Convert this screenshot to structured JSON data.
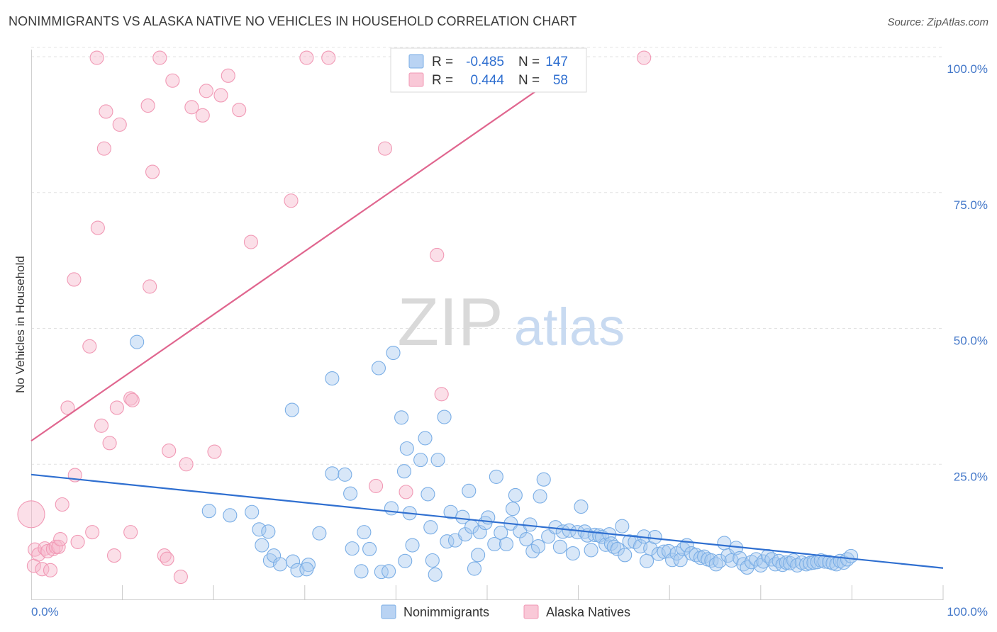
{
  "header": {
    "title": "NONIMMIGRANTS VS ALASKA NATIVE NO VEHICLES IN HOUSEHOLD CORRELATION CHART",
    "source": "Source: ZipAtlas.com"
  },
  "watermark": {
    "zip": "ZIP",
    "atlas": "atlas"
  },
  "legend_box": {
    "rows": [
      {
        "r_label": "R =",
        "r_value": "-0.485",
        "n_label": "N =",
        "n_value": "147",
        "color": "#7aaee6"
      },
      {
        "r_label": "R =",
        "r_value": "0.444",
        "n_label": "N =",
        "n_value": "58",
        "color": "#f199b5"
      }
    ]
  },
  "bottom_legend": [
    {
      "label": "Nonimmigrants",
      "color": "#7aaee6"
    },
    {
      "label": "Alaska Natives",
      "color": "#f199b5"
    }
  ],
  "colors": {
    "blue": "#7aaee6",
    "blue_line": "#2f6fd0",
    "pink": "#f199b5",
    "pink_line": "#e0668f",
    "axis_text": "#4478c9"
  },
  "chart_data": {
    "type": "scatter",
    "title": "NONIMMIGRANTS VS ALASKA NATIVE NO VEHICLES IN HOUSEHOLD CORRELATION CHART",
    "xlabel": "",
    "ylabel": "No Vehicles in Household",
    "xlim": [
      0,
      100
    ],
    "ylim": [
      0,
      102
    ],
    "x_tick_labels": [
      "0.0%",
      "100.0%"
    ],
    "y_ticks": [
      25,
      50,
      75,
      100
    ],
    "y_tick_labels": [
      "25.0%",
      "50.0%",
      "75.0%",
      "100.0%"
    ],
    "grid": true,
    "series": [
      {
        "name": "Nonimmigrants",
        "color": "#7aaee6",
        "r": -0.485,
        "n": 147,
        "trend": {
          "x": [
            0,
            100
          ],
          "y": [
            23.1,
            5.9
          ]
        },
        "points": [
          [
            11.6,
            47.5
          ],
          [
            19.5,
            16.4
          ],
          [
            21.8,
            15.6
          ],
          [
            24.2,
            16.2
          ],
          [
            25.0,
            13.0
          ],
          [
            25.3,
            10.1
          ],
          [
            26.0,
            12.6
          ],
          [
            26.2,
            7.3
          ],
          [
            26.6,
            8.2
          ],
          [
            27.3,
            6.6
          ],
          [
            28.6,
            35.0
          ],
          [
            28.7,
            7.1
          ],
          [
            29.2,
            5.5
          ],
          [
            30.4,
            6.5
          ],
          [
            30.2,
            5.7
          ],
          [
            31.6,
            12.3
          ],
          [
            33.0,
            40.8
          ],
          [
            33.0,
            23.3
          ],
          [
            34.4,
            23.1
          ],
          [
            35.0,
            19.6
          ],
          [
            35.2,
            9.5
          ],
          [
            36.2,
            5.3
          ],
          [
            36.5,
            12.5
          ],
          [
            37.1,
            9.4
          ],
          [
            38.1,
            42.7
          ],
          [
            38.4,
            5.2
          ],
          [
            39.2,
            5.3
          ],
          [
            39.5,
            16.9
          ],
          [
            39.7,
            45.5
          ],
          [
            40.6,
            33.6
          ],
          [
            40.9,
            23.7
          ],
          [
            41.0,
            7.2
          ],
          [
            41.2,
            27.9
          ],
          [
            41.5,
            16.0
          ],
          [
            41.8,
            10.1
          ],
          [
            42.7,
            25.8
          ],
          [
            43.2,
            29.8
          ],
          [
            43.5,
            19.5
          ],
          [
            43.8,
            13.4
          ],
          [
            44.0,
            7.3
          ],
          [
            44.3,
            4.7
          ],
          [
            44.6,
            25.8
          ],
          [
            45.3,
            33.7
          ],
          [
            45.6,
            10.8
          ],
          [
            46.0,
            16.2
          ],
          [
            46.5,
            11.0
          ],
          [
            47.3,
            15.3
          ],
          [
            47.6,
            12.1
          ],
          [
            48.0,
            20.1
          ],
          [
            48.3,
            13.5
          ],
          [
            48.6,
            5.8
          ],
          [
            49.0,
            8.3
          ],
          [
            49.2,
            12.5
          ],
          [
            49.8,
            14.2
          ],
          [
            50.1,
            15.2
          ],
          [
            50.8,
            10.3
          ],
          [
            51.0,
            22.7
          ],
          [
            51.5,
            12.4
          ],
          [
            52.1,
            10.3
          ],
          [
            52.6,
            14.1
          ],
          [
            52.8,
            16.8
          ],
          [
            53.1,
            19.3
          ],
          [
            53.6,
            12.7
          ],
          [
            54.3,
            11.2
          ],
          [
            54.7,
            13.9
          ],
          [
            55.0,
            9.0
          ],
          [
            55.6,
            9.9
          ],
          [
            55.8,
            19.1
          ],
          [
            56.2,
            22.2
          ],
          [
            56.7,
            11.7
          ],
          [
            57.5,
            13.4
          ],
          [
            58.0,
            9.8
          ],
          [
            58.3,
            12.6
          ],
          [
            59.0,
            12.8
          ],
          [
            59.4,
            8.6
          ],
          [
            59.9,
            12.5
          ],
          [
            60.3,
            17.2
          ],
          [
            60.7,
            12.6
          ],
          [
            61.0,
            11.9
          ],
          [
            61.4,
            9.2
          ],
          [
            61.8,
            12.0
          ],
          [
            62.3,
            11.9
          ],
          [
            62.6,
            11.6
          ],
          [
            63.0,
            10.2
          ],
          [
            63.4,
            12.1
          ],
          [
            63.6,
            10.4
          ],
          [
            63.9,
            9.8
          ],
          [
            64.3,
            9.4
          ],
          [
            64.8,
            13.6
          ],
          [
            65.1,
            8.3
          ],
          [
            65.6,
            10.8
          ],
          [
            66.2,
            10.7
          ],
          [
            66.8,
            9.9
          ],
          [
            67.2,
            11.7
          ],
          [
            67.5,
            7.2
          ],
          [
            67.9,
            9.5
          ],
          [
            68.4,
            11.6
          ],
          [
            68.8,
            8.5
          ],
          [
            69.4,
            8.9
          ],
          [
            69.9,
            9.0
          ],
          [
            70.3,
            7.4
          ],
          [
            70.8,
            8.6
          ],
          [
            71.2,
            7.4
          ],
          [
            71.5,
            9.4
          ],
          [
            71.9,
            10.1
          ],
          [
            72.4,
            8.6
          ],
          [
            72.9,
            8.3
          ],
          [
            73.4,
            7.8
          ],
          [
            73.8,
            8.0
          ],
          [
            74.2,
            7.5
          ],
          [
            74.6,
            7.3
          ],
          [
            75.1,
            6.6
          ],
          [
            75.5,
            7.2
          ],
          [
            76.0,
            10.5
          ],
          [
            76.4,
            8.2
          ],
          [
            76.8,
            7.3
          ],
          [
            77.3,
            9.6
          ],
          [
            77.7,
            7.7
          ],
          [
            78.1,
            6.6
          ],
          [
            78.5,
            6.0
          ],
          [
            79.0,
            7.0
          ],
          [
            79.5,
            7.5
          ],
          [
            80.0,
            6.4
          ],
          [
            80.3,
            7.1
          ],
          [
            80.8,
            8.1
          ],
          [
            81.2,
            7.5
          ],
          [
            81.6,
            6.6
          ],
          [
            82.0,
            7.2
          ],
          [
            82.4,
            6.5
          ],
          [
            82.8,
            6.9
          ],
          [
            83.2,
            6.8
          ],
          [
            83.6,
            7.3
          ],
          [
            84.0,
            6.4
          ],
          [
            84.5,
            6.9
          ],
          [
            85.0,
            6.6
          ],
          [
            85.4,
            6.8
          ],
          [
            85.8,
            6.9
          ],
          [
            86.2,
            7.0
          ],
          [
            86.6,
            7.3
          ],
          [
            87.0,
            7.1
          ],
          [
            87.5,
            7.0
          ],
          [
            87.9,
            6.8
          ],
          [
            88.3,
            6.6
          ],
          [
            88.7,
            7.2
          ],
          [
            89.1,
            6.9
          ],
          [
            89.5,
            7.5
          ],
          [
            89.9,
            8.1
          ]
        ]
      },
      {
        "name": "Alaska Natives",
        "color": "#f199b5",
        "r": 0.444,
        "n": 58,
        "trend": {
          "x": [
            0,
            60.8
          ],
          "y": [
            29.3,
            100
          ]
        },
        "points": [
          [
            0.0,
            15.8
          ],
          [
            0.3,
            6.3
          ],
          [
            0.4,
            9.3
          ],
          [
            0.8,
            8.4
          ],
          [
            1.2,
            5.7
          ],
          [
            1.5,
            9.5
          ],
          [
            1.8,
            9.0
          ],
          [
            2.1,
            5.5
          ],
          [
            2.4,
            9.4
          ],
          [
            2.7,
            9.8
          ],
          [
            3.0,
            9.8
          ],
          [
            3.2,
            11.2
          ],
          [
            3.4,
            17.6
          ],
          [
            4.0,
            35.4
          ],
          [
            4.8,
            23.0
          ],
          [
            5.1,
            10.7
          ],
          [
            4.7,
            59.0
          ],
          [
            6.4,
            46.7
          ],
          [
            6.7,
            12.5
          ],
          [
            7.2,
            99.8
          ],
          [
            7.3,
            68.5
          ],
          [
            7.7,
            32.1
          ],
          [
            8.0,
            83.1
          ],
          [
            8.2,
            89.9
          ],
          [
            8.6,
            28.9
          ],
          [
            9.1,
            8.2
          ],
          [
            9.4,
            35.4
          ],
          [
            9.7,
            87.5
          ],
          [
            10.9,
            37.1
          ],
          [
            11.1,
            36.8
          ],
          [
            10.9,
            12.5
          ],
          [
            12.8,
            91.0
          ],
          [
            13.0,
            57.7
          ],
          [
            13.3,
            78.8
          ],
          [
            14.1,
            99.8
          ],
          [
            14.6,
            8.2
          ],
          [
            14.9,
            7.6
          ],
          [
            15.1,
            27.5
          ],
          [
            15.5,
            95.6
          ],
          [
            16.4,
            4.3
          ],
          [
            17.0,
            25.0
          ],
          [
            17.6,
            90.7
          ],
          [
            18.8,
            89.2
          ],
          [
            19.2,
            93.7
          ],
          [
            20.1,
            27.3
          ],
          [
            20.8,
            92.9
          ],
          [
            21.6,
            96.5
          ],
          [
            22.8,
            90.2
          ],
          [
            24.1,
            65.9
          ],
          [
            28.5,
            73.5
          ],
          [
            30.2,
            99.8
          ],
          [
            32.6,
            99.8
          ],
          [
            37.8,
            21.0
          ],
          [
            38.8,
            83.1
          ],
          [
            41.1,
            19.9
          ],
          [
            44.5,
            63.5
          ],
          [
            45.0,
            37.9
          ],
          [
            67.2,
            99.8
          ]
        ]
      }
    ]
  }
}
